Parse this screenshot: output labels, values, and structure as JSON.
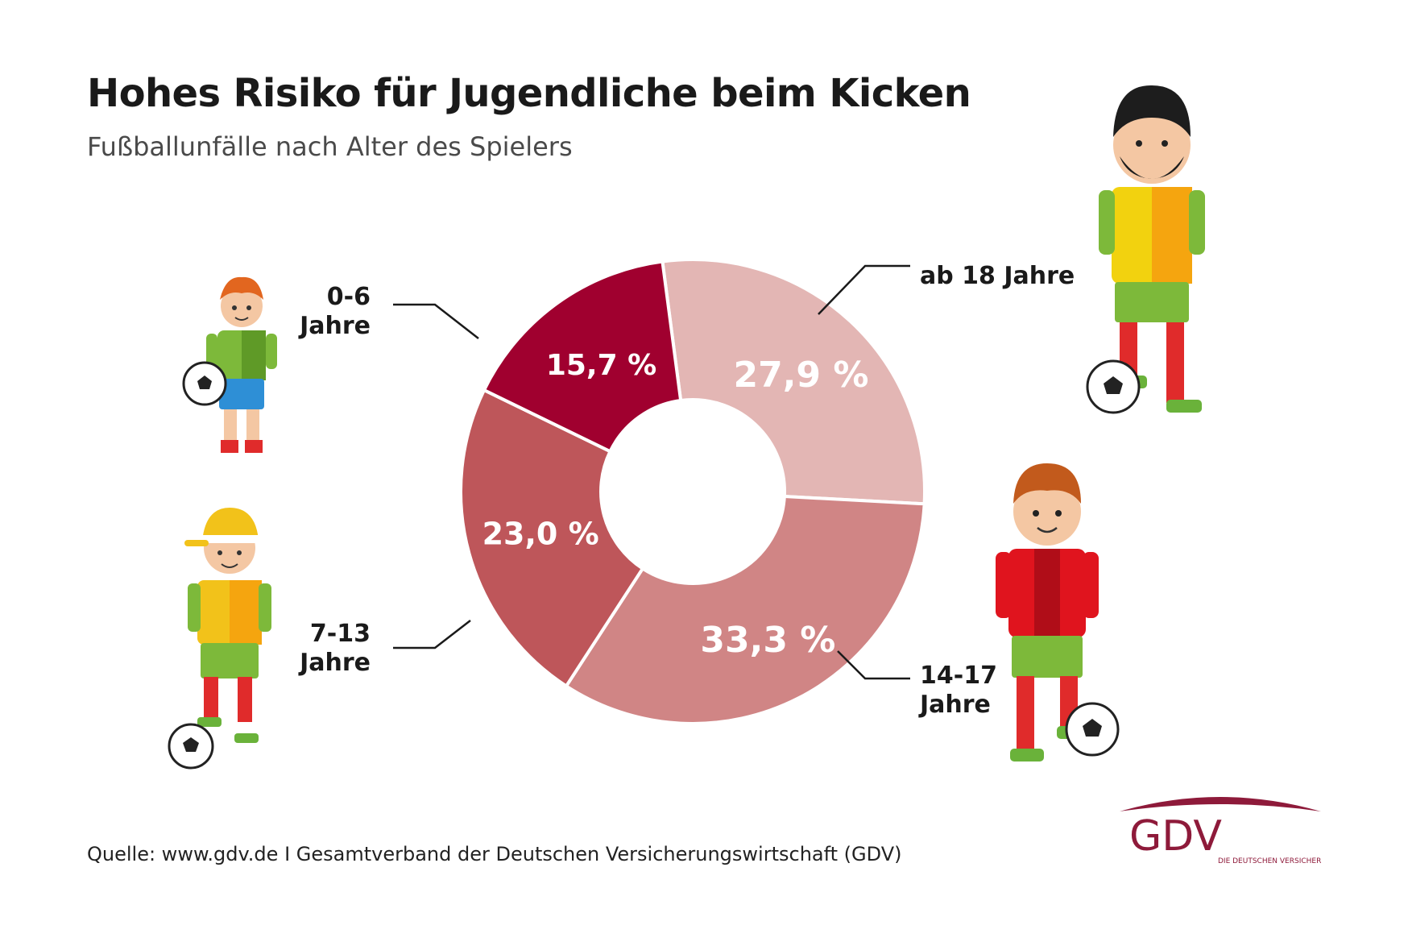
{
  "title": "Hohes Risiko für Jugendliche beim Kicken",
  "subtitle": "Fußballunfälle nach Alter des Spielers",
  "source": "Quelle: www.gdv.de I Gesamtverband der Deutschen Versicherungswirtschaft (GDV)",
  "logo": {
    "main": "GDV",
    "tagline": "DIE DEUTSCHEN VERSICHERER"
  },
  "chart_data": {
    "type": "pie",
    "title": "Hohes Risiko für Jugendliche beim Kicken",
    "subtitle": "Fußballunfälle nach Alter des Spielers",
    "unit": "%",
    "slices": [
      {
        "label_lines": [
          "ab 18 Jahre"
        ],
        "value": 27.9,
        "value_label": "27,9 %",
        "color": "#e3b6b4"
      },
      {
        "label_lines": [
          "14-17",
          "Jahre"
        ],
        "value": 33.3,
        "value_label": "33,3 %",
        "color": "#d08585"
      },
      {
        "label_lines": [
          "7-13",
          "Jahre"
        ],
        "value": 23.0,
        "value_label": "23,0 %",
        "color": "#be565a"
      },
      {
        "label_lines": [
          "0-6",
          "Jahre"
        ],
        "value": 15.7,
        "value_label": "15,7 %",
        "color": "#a0002f"
      }
    ]
  }
}
